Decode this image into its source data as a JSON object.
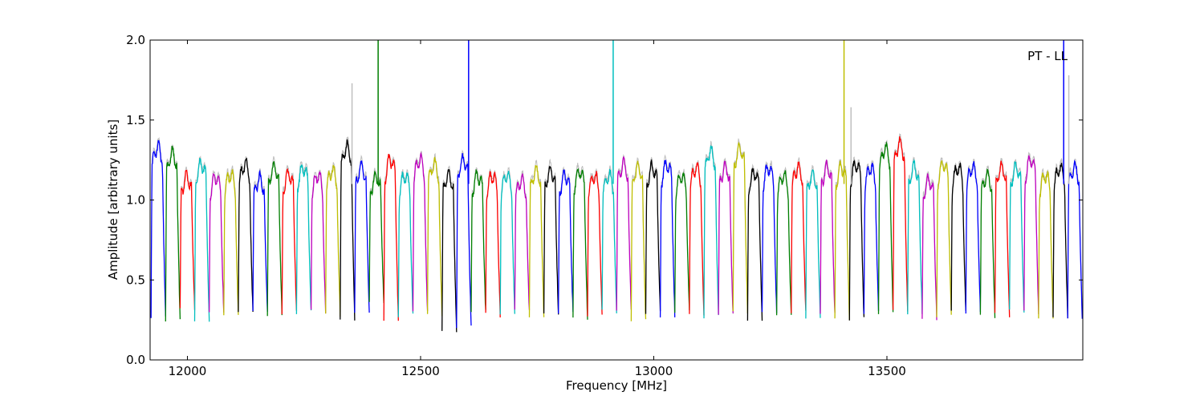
{
  "chart_data": {
    "type": "line",
    "title": "",
    "annotation": "PT - LL",
    "xlabel": "Frequency [MHz]",
    "ylabel": "Amplitude [arbitrary units]",
    "xlim": [
      11920,
      13920
    ],
    "ylim": [
      0.0,
      2.0
    ],
    "xticks": [
      12000,
      12500,
      13000,
      13500
    ],
    "xtick_labels": [
      "12000",
      "12500",
      "13000",
      "13500"
    ],
    "yticks": [
      0.0,
      0.5,
      1.0,
      1.5,
      2.0
    ],
    "ytick_labels": [
      "0.0",
      "0.5",
      "1.0",
      "1.5",
      "2.0"
    ],
    "grid": false,
    "legend": "none",
    "background_series_color": "#bfbfbf",
    "segment_colors": [
      "#0000ff",
      "#007f00",
      "#ff0000",
      "#00bfbf",
      "#bf00bf",
      "#bfbf00",
      "#000000"
    ],
    "segments": {
      "start_frequency": 11922,
      "width_mhz": 31.2,
      "count": 64,
      "plateau": [
        1.33,
        1.29,
        1.14,
        1.22,
        1.14,
        1.16,
        1.22,
        1.13,
        1.2,
        1.16,
        1.2,
        1.15,
        1.18,
        1.33,
        1.2,
        1.14,
        1.25,
        1.15,
        1.25,
        1.22,
        1.15,
        1.25,
        1.15,
        1.15,
        1.15,
        1.12,
        1.18,
        1.18,
        1.15,
        1.18,
        1.15,
        1.15,
        1.22,
        1.2,
        1.2,
        1.22,
        1.15,
        1.2,
        1.3,
        1.2,
        1.32,
        1.17,
        1.2,
        1.15,
        1.2,
        1.15,
        1.2,
        1.2,
        1.22,
        1.2,
        1.32,
        1.35,
        1.2,
        1.12,
        1.22,
        1.2,
        1.2,
        1.15,
        1.2,
        1.2,
        1.25,
        1.15,
        1.2,
        1.2
      ],
      "minimum": [
        0.27,
        0.25,
        0.32,
        0.25,
        0.3,
        0.28,
        0.3,
        0.3,
        0.28,
        0.3,
        0.3,
        0.3,
        0.28,
        0.26,
        0.3,
        0.36,
        0.25,
        0.28,
        0.3,
        0.28,
        0.17,
        0.21,
        0.3,
        0.28,
        0.29,
        0.3,
        0.28,
        0.28,
        0.3,
        0.26,
        0.28,
        0.3,
        0.31,
        0.25,
        0.3,
        0.28,
        0.3,
        0.28,
        0.27,
        0.28,
        0.3,
        0.26,
        0.3,
        0.28,
        0.3,
        0.26,
        0.28,
        0.26,
        0.26,
        0.3,
        0.3,
        0.3,
        0.28,
        0.26,
        0.27,
        0.3,
        0.3,
        0.27,
        0.28,
        0.3,
        0.3,
        0.27,
        0.27,
        0.27
      ]
    },
    "spikes": [
      {
        "x": 12409,
        "ymax": 2.0,
        "color": "#007f00"
      },
      {
        "x": 12603,
        "ymax": 2.0,
        "color": "#0000ff"
      },
      {
        "x": 12913,
        "ymax": 2.0,
        "color": "#00bfbf"
      },
      {
        "x": 13408,
        "ymax": 2.0,
        "color": "#bfbf00"
      },
      {
        "x": 13879,
        "ymax": 2.0,
        "color": "#0000ff"
      },
      {
        "x": 12353,
        "ymax": 1.73,
        "color": "#bfbfbf"
      },
      {
        "x": 13423,
        "ymax": 1.58,
        "color": "#bfbfbf"
      },
      {
        "x": 13890,
        "ymax": 1.78,
        "color": "#bfbfbf"
      }
    ]
  }
}
